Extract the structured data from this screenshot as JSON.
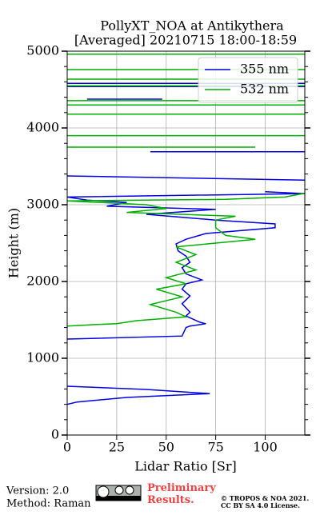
{
  "chart_data": {
    "type": "line",
    "title": "PollyXT_NOA at Antikythera",
    "subtitle": "[Averaged] 20210715 18:00-18:59",
    "xlabel": "Lidar Ratio [Sr]",
    "ylabel": "Height (m)",
    "xlim": [
      0,
      120
    ],
    "xticks": [
      0,
      25,
      50,
      75,
      100
    ],
    "ylim": [
      0,
      5000
    ],
    "yticks": [
      0,
      1000,
      2000,
      3000,
      4000,
      5000
    ],
    "y_minor_ticks": [
      200,
      400,
      600,
      800,
      1200,
      1400,
      1600,
      1800,
      2200,
      2400,
      2600,
      2800,
      3200,
      3400,
      3600,
      3800,
      4200,
      4400,
      4600,
      4800
    ],
    "grid": true,
    "legend": "upper right",
    "series": [
      {
        "name": "355 nm",
        "color": "#0000e0",
        "y": [
          400,
          430,
          490,
          540,
          594,
          635,
          null,
          1250,
          1290,
          1400,
          1420,
          1450,
          1470,
          1550,
          1600,
          1710,
          1810,
          1900,
          1970,
          2020,
          2100,
          2180,
          2250,
          2330,
          2400,
          2490,
          2550,
          2625,
          2700,
          2750,
          2800,
          2875,
          2940,
          2980,
          3030,
          3060,
          3100,
          3145,
          3170,
          null,
          3320,
          3375,
          null,
          3690,
          3690,
          null,
          4375,
          4375,
          null,
          4540,
          4540,
          null,
          4580,
          4580
        ],
        "values": [
          0,
          5,
          30,
          72,
          40,
          0,
          null,
          0,
          58,
          60,
          62,
          70,
          67,
          60,
          62,
          58,
          62,
          58,
          60,
          68,
          60,
          58,
          62,
          60,
          56,
          55,
          60,
          70,
          105,
          105,
          75,
          40,
          75,
          20,
          30,
          10,
          0,
          120,
          100,
          null,
          120,
          0,
          null,
          42,
          120,
          null,
          10,
          48,
          null,
          0,
          120,
          null,
          0,
          120
        ]
      },
      {
        "name": "532 nm",
        "color": "#00b000",
        "y": [
          1420,
          1440,
          1450,
          1490,
          1540,
          1600,
          1700,
          1800,
          1900,
          1970,
          2050,
          2150,
          2250,
          2350,
          2450,
          2550,
          2600,
          2700,
          2800,
          2850,
          2900,
          2950,
          3000,
          3050,
          3070,
          3100,
          3150,
          null,
          3750,
          3750,
          null,
          3900,
          3900,
          null,
          4180,
          4180,
          null,
          4300,
          4300,
          null,
          4355,
          4355,
          null,
          4550,
          4550,
          null,
          4635,
          4635,
          null,
          4760,
          4760,
          null,
          4960,
          4960
        ],
        "values": [
          0,
          15,
          25,
          35,
          60,
          55,
          42,
          58,
          45,
          60,
          50,
          65,
          55,
          65,
          55,
          95,
          80,
          75,
          75,
          85,
          30,
          50,
          40,
          0,
          80,
          110,
          120,
          null,
          0,
          95,
          null,
          0,
          120,
          null,
          0,
          120,
          null,
          0,
          120,
          null,
          0,
          120,
          null,
          0,
          120,
          null,
          0,
          120,
          null,
          0,
          120,
          null,
          0,
          120
        ]
      }
    ]
  },
  "footer": {
    "version": "Version: 2.0",
    "method": "Method: Raman",
    "status": "Preliminary Results.",
    "copyright": "© TROPOS & NOA 2021.",
    "license": "CC BY SA 4.0 License."
  }
}
